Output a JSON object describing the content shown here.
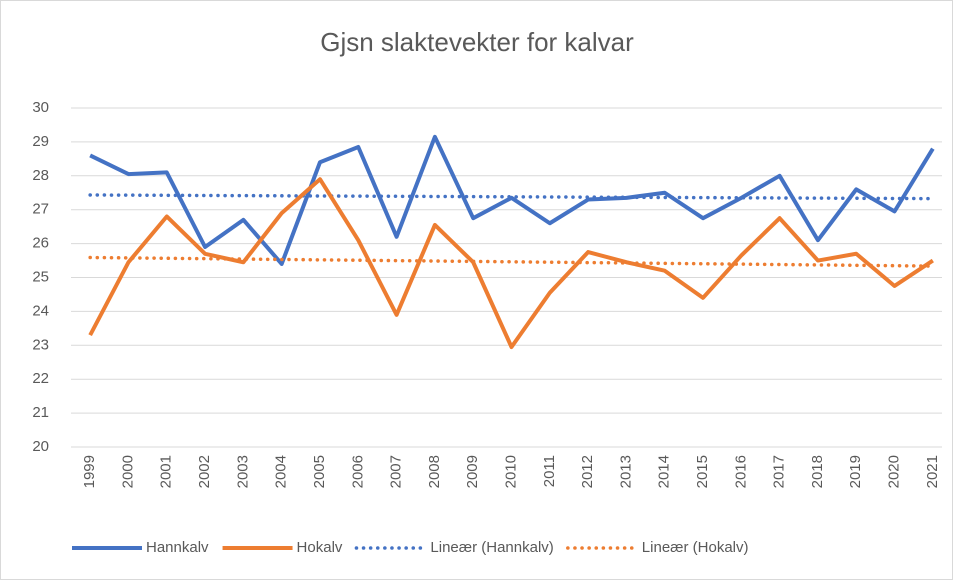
{
  "chart_data": {
    "type": "line",
    "title": "Gjsn slaktevekter for kalvar",
    "categories": [
      "1999",
      "2000",
      "2001",
      "2002",
      "2003",
      "2004",
      "2005",
      "2006",
      "2007",
      "2008",
      "2009",
      "2010",
      "2011",
      "2012",
      "2013",
      "2014",
      "2015",
      "2016",
      "2017",
      "2018",
      "2019",
      "2020",
      "2021"
    ],
    "series": [
      {
        "name": "Hannkalv",
        "color": "#4472c4",
        "trendline": "Lineær (Hannkalv)",
        "values": [
          28.6,
          28.05,
          28.1,
          25.9,
          26.7,
          25.4,
          28.4,
          28.85,
          26.2,
          29.15,
          26.75,
          27.35,
          26.6,
          27.3,
          27.35,
          27.5,
          26.75,
          27.35,
          28.0,
          26.1,
          27.6,
          26.95,
          28.8
        ]
      },
      {
        "name": "Hokalv",
        "color": "#ed7d31",
        "trendline": "Lineær (Hokalv)",
        "values": [
          23.3,
          25.45,
          26.8,
          25.7,
          25.45,
          26.9,
          27.9,
          26.1,
          23.9,
          26.55,
          25.45,
          22.95,
          24.55,
          25.75,
          25.45,
          25.2,
          24.4,
          25.65,
          26.75,
          25.5,
          25.7,
          24.75,
          25.5
        ]
      }
    ],
    "ylim": [
      20,
      30
    ],
    "yticks": [
      20,
      21,
      22,
      23,
      24,
      25,
      26,
      27,
      28,
      29,
      30
    ],
    "grid": true,
    "legend": "bottom"
  }
}
